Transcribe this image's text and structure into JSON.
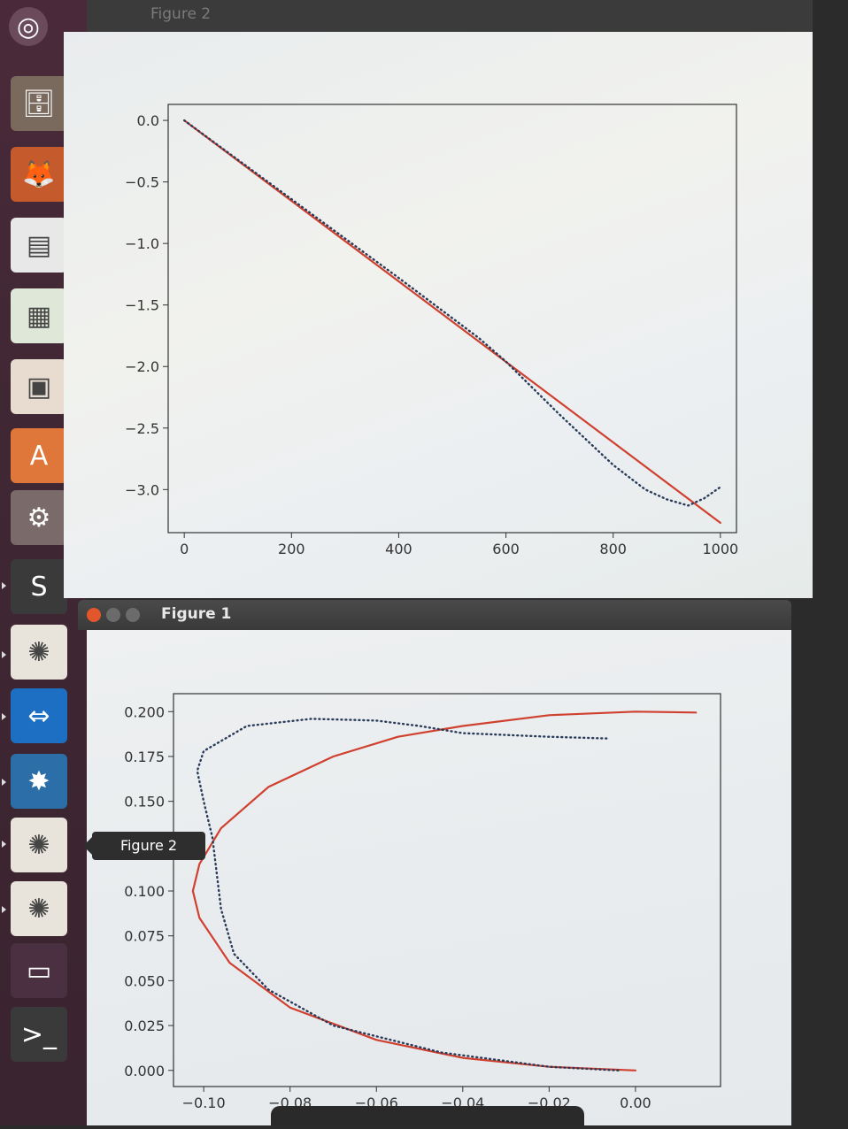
{
  "figure2": {
    "title": "Figure 2",
    "chart_data": {
      "type": "line",
      "x_ticks": [
        "0",
        "200",
        "400",
        "600",
        "800",
        "1000"
      ],
      "y_ticks": [
        "0.0",
        "−0.5",
        "−1.0",
        "−1.5",
        "−2.0",
        "−2.5",
        "−3.0"
      ],
      "xlim": [
        -30,
        1030
      ],
      "ylim": [
        -3.35,
        0.13
      ],
      "series": [
        {
          "style": "solid",
          "color": "#d0402f",
          "x": [
            0,
            1000
          ],
          "y": [
            0,
            -3.27
          ]
        },
        {
          "style": "dotted",
          "color": "#2a3b5a",
          "x": [
            0,
            200,
            400,
            550,
            600,
            700,
            800,
            860,
            900,
            940,
            970,
            1000
          ],
          "y": [
            0,
            -0.64,
            -1.28,
            -1.77,
            -1.96,
            -2.39,
            -2.8,
            -3.0,
            -3.08,
            -3.13,
            -3.07,
            -2.98
          ]
        }
      ]
    }
  },
  "figure1": {
    "title": "Figure 1",
    "chart_data": {
      "type": "line",
      "x_ticks": [
        "−0.10",
        "−0.08",
        "−0.06",
        "−0.04",
        "−0.02",
        "0.00"
      ],
      "y_ticks": [
        "0.200",
        "0.175",
        "0.150",
        "0.125",
        "0.100",
        "0.075",
        "0.050",
        "0.025",
        "0.000"
      ],
      "xlim": [
        -0.107,
        0.0197
      ],
      "ylim": [
        -0.009,
        0.21
      ],
      "series": [
        {
          "style": "solid",
          "color": "#d0402f",
          "x": [
            0,
            -0.02,
            -0.04,
            -0.06,
            -0.08,
            -0.094,
            -0.101,
            -0.1025,
            -0.101,
            -0.096,
            -0.085,
            -0.07,
            -0.055,
            -0.04,
            -0.02,
            0,
            0.014
          ],
          "y": [
            0,
            0.002,
            0.007,
            0.017,
            0.035,
            0.06,
            0.085,
            0.1,
            0.115,
            0.135,
            0.158,
            0.175,
            0.186,
            0.192,
            0.198,
            0.2,
            0.1995
          ]
        },
        {
          "style": "dotted",
          "color": "#2a3b5a",
          "x": [
            -0.004,
            -0.02,
            -0.045,
            -0.07,
            -0.085,
            -0.093,
            -0.096,
            -0.097,
            -0.098,
            -0.1,
            -0.1015,
            -0.1,
            -0.09,
            -0.075,
            -0.06,
            -0.05,
            -0.04,
            -0.02,
            -0.006
          ],
          "y": [
            0.0,
            0.002,
            0.01,
            0.025,
            0.045,
            0.065,
            0.09,
            0.11,
            0.13,
            0.15,
            0.167,
            0.178,
            0.192,
            0.196,
            0.195,
            0.192,
            0.188,
            0.186,
            0.185
          ]
        }
      ]
    }
  },
  "tooltip": "Figure 2",
  "launcher": {
    "items": [
      {
        "name": "ubuntu-dash-icon",
        "glyph": "◎",
        "bg": "#6b4b5b"
      },
      {
        "name": "files-icon",
        "glyph": "🗄",
        "bg": "#7a6a5e"
      },
      {
        "name": "firefox-icon",
        "glyph": "🦊",
        "bg": "#c55a2d"
      },
      {
        "name": "writer-icon",
        "glyph": "▤",
        "bg": "#e8e8e8"
      },
      {
        "name": "calc-icon",
        "glyph": "▦",
        "bg": "#dfe8d8"
      },
      {
        "name": "impress-icon",
        "glyph": "▣",
        "bg": "#e8dcd0"
      },
      {
        "name": "software-center-icon",
        "glyph": "A",
        "bg": "#e0773a"
      },
      {
        "name": "settings-icon",
        "glyph": "⚙",
        "bg": "#7a6a6a"
      },
      {
        "name": "sublime-icon",
        "glyph": "S",
        "bg": "#3a3a3a"
      },
      {
        "name": "matplotlib-icon",
        "glyph": "✺",
        "bg": "#e8e4dc"
      },
      {
        "name": "teamviewer-icon",
        "glyph": "⇔",
        "bg": "#1d6fc4"
      },
      {
        "name": "app-icon",
        "glyph": "✸",
        "bg": "#2b6ea8"
      },
      {
        "name": "matplotlib-icon",
        "glyph": "✺",
        "bg": "#e8e4dc"
      },
      {
        "name": "matplotlib-icon",
        "glyph": "✺",
        "bg": "#e8e4dc"
      },
      {
        "name": "workspace-switcher-icon",
        "glyph": "▭",
        "bg": "#4a3040"
      },
      {
        "name": "terminal-icon",
        "glyph": ">_",
        "bg": "#3a3a3a"
      }
    ]
  }
}
